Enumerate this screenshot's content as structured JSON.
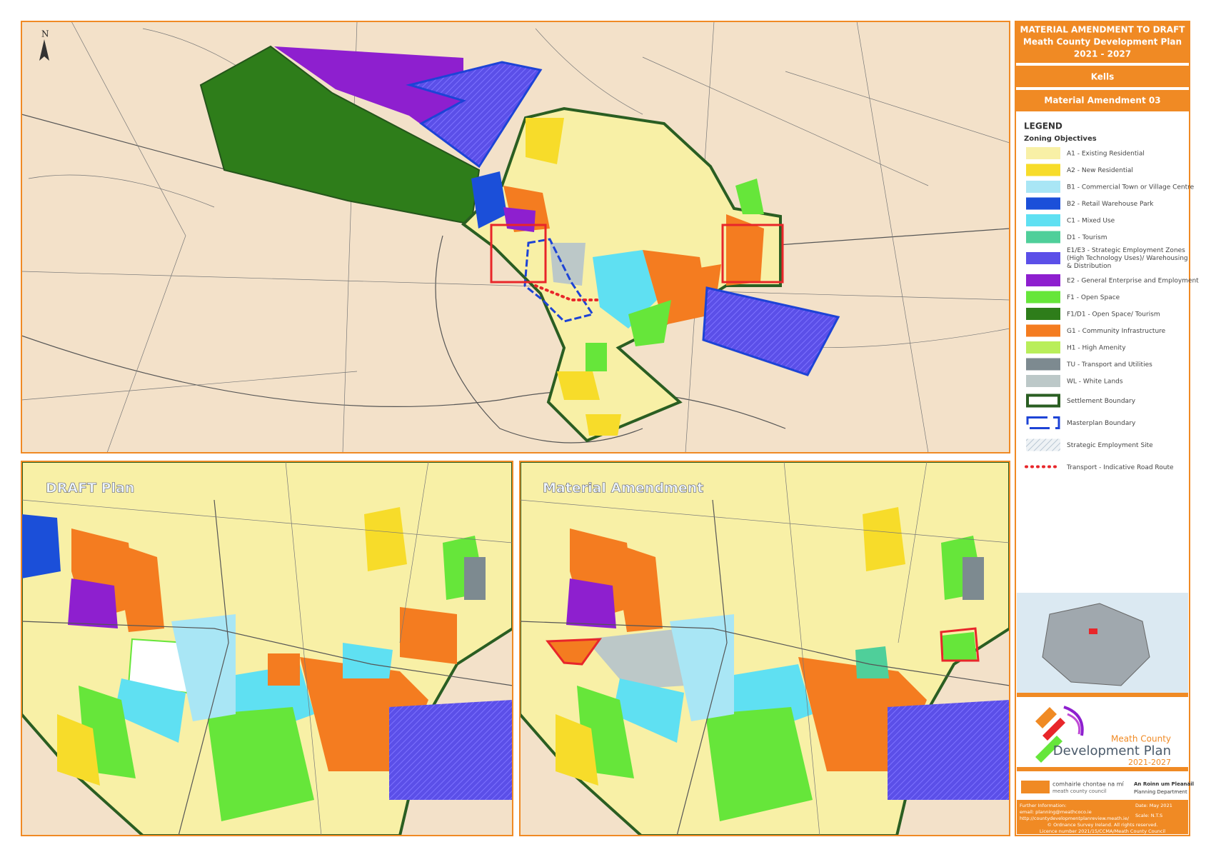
{
  "header": {
    "title_lines": [
      "MATERIAL AMENDMENT TO DRAFT",
      "Meath County Development Plan",
      "2021 - 2027"
    ],
    "town": "Kells",
    "amendment": "Material Amendment 03"
  },
  "map": {
    "north": "N",
    "panels": [
      "DRAFT Plan",
      "Material Amendment"
    ]
  },
  "legend": {
    "title": "LEGEND",
    "subtitle": "Zoning Objectives",
    "zones": [
      {
        "label": "A1 - Existing Residential",
        "color": "#f8f0a6"
      },
      {
        "label": "A2 - New Residential",
        "color": "#f7dc2a"
      },
      {
        "label": "B1 - Commercial Town or Village Centre",
        "color": "#a9e6f5"
      },
      {
        "label": "B2 - Retail Warehouse Park",
        "color": "#1b4fd9"
      },
      {
        "label": "C1 - Mixed Use",
        "color": "#5fe0f2"
      },
      {
        "label": "D1 - Tourism",
        "color": "#4fcf9a"
      },
      {
        "label": "E1/E3 - Strategic Employment Zones (High Technology Uses)/ Warehousing & Distribution",
        "color": "#5b4fe8"
      },
      {
        "label": "E2 - General Enterprise and Employment",
        "color": "#8e1fcf"
      },
      {
        "label": "F1 - Open Space",
        "color": "#66e63a"
      },
      {
        "label": "F1/D1 - Open Space/ Tourism",
        "color": "#2e7d1a"
      },
      {
        "label": "G1 - Community Infrastructure",
        "color": "#f47c20"
      },
      {
        "label": "H1 - High Amenity",
        "color": "#b9ee5a"
      },
      {
        "label": "TU - Transport and Utilities",
        "color": "#7d8a90"
      },
      {
        "label": "WL - White Lands",
        "color": "#bcc8c8"
      }
    ],
    "boundaries": [
      {
        "label": "Settlement Boundary",
        "color": "#2a5e22",
        "style": "settlement"
      },
      {
        "label": "Masterplan Boundary",
        "color": "#1d43d6",
        "style": "masterplan"
      },
      {
        "label": "Strategic Employment Site",
        "color": "#a6b8c8",
        "style": "hatch"
      },
      {
        "label": "Transport - Indicative Road Route",
        "color": "#e8262a",
        "style": "dots"
      }
    ]
  },
  "branding": {
    "logo_lines": [
      "Meath County",
      "Development Plan",
      "2021-2027"
    ],
    "council_irish": "comhairle chontae na mí",
    "council_english": "meath county council",
    "department_irish": "An Roinn um Pleanáil",
    "department_english": "Planning Department"
  },
  "footer": {
    "info_lines": [
      "Further Information:",
      "email: planning@meathcoco.ie",
      "http://countydevelopmentplanreview.meath.ie/"
    ],
    "date": "Date: May 2021",
    "scale": "Scale: N.T.S",
    "copyright": "© Ordnance Survey Ireland. All rights reserved.",
    "licence": "Licence number 2021/15/CCMA/Meath County Council"
  }
}
